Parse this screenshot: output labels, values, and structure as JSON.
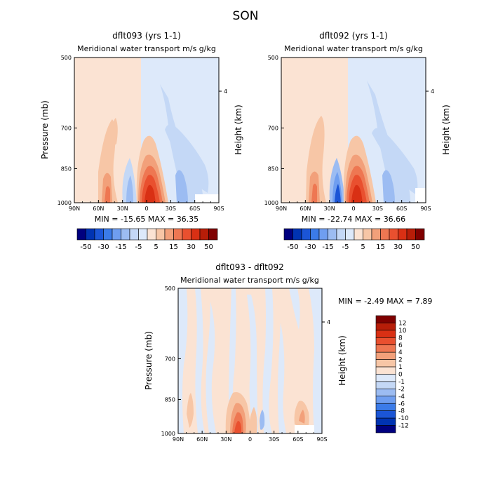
{
  "page": {
    "title": "SON"
  },
  "chart_data": [
    {
      "type": "heatmap",
      "title": "dflt093 (yrs 1-1)",
      "subtitle": "Meridional water transport m/s g/kg",
      "ylabel": "Pressure (mb)",
      "y2label": "Height (km)",
      "x_ticks": [
        "90N",
        "60N",
        "30N",
        "0",
        "30S",
        "60S",
        "90S"
      ],
      "x_values": [
        90,
        60,
        30,
        0,
        -30,
        -60,
        -90
      ],
      "y_ticks": [
        "500",
        "700",
        "850",
        "1000"
      ],
      "y_values": [
        500,
        700,
        850,
        1000
      ],
      "y2_ticks": [
        "4"
      ],
      "minmax": "MIN = -15.65   MAX =  36.35",
      "colorbar_labels": [
        "-50",
        "-30",
        "-15",
        "-5",
        "5",
        "15",
        "30",
        "50"
      ],
      "colors": [
        "#00007f",
        "#0033b2",
        "#1b55d6",
        "#3b7be8",
        "#6f9ef0",
        "#9cbcf2",
        "#c4d8f6",
        "#dde9fa",
        "#fbe3d3",
        "#f7c6a6",
        "#f2a07a",
        "#ee7752",
        "#e9502f",
        "#d93014",
        "#b71d08",
        "#7f0000"
      ]
    },
    {
      "type": "heatmap",
      "title": "dflt092 (yrs 1-1)",
      "subtitle": "Meridional water transport m/s g/kg",
      "ylabel": "",
      "y2label": "Height (km)",
      "x_ticks": [
        "90N",
        "60N",
        "30N",
        "0",
        "30S",
        "60S",
        "90S"
      ],
      "x_values": [
        90,
        60,
        30,
        0,
        -30,
        -60,
        -90
      ],
      "y_ticks": [
        "500",
        "700",
        "850",
        "1000"
      ],
      "y_values": [
        500,
        700,
        850,
        1000
      ],
      "y2_ticks": [
        "4"
      ],
      "minmax": "MIN = -22.74   MAX =  36.66",
      "colorbar_labels": [
        "-50",
        "-30",
        "-15",
        "-5",
        "5",
        "15",
        "30",
        "50"
      ],
      "colors": [
        "#00007f",
        "#0033b2",
        "#1b55d6",
        "#3b7be8",
        "#6f9ef0",
        "#9cbcf2",
        "#c4d8f6",
        "#dde9fa",
        "#fbe3d3",
        "#f7c6a6",
        "#f2a07a",
        "#ee7752",
        "#e9502f",
        "#d93014",
        "#b71d08",
        "#7f0000"
      ]
    },
    {
      "type": "heatmap",
      "title": "dflt093 - dflt092",
      "subtitle": "Meridional water transport m/s g/kg",
      "ylabel": "Pressure (mb)",
      "y2label": "Height (km)",
      "x_ticks": [
        "90N",
        "60N",
        "30N",
        "0",
        "30S",
        "60S",
        "90S"
      ],
      "x_values": [
        90,
        60,
        30,
        0,
        -30,
        -60,
        -90
      ],
      "y_ticks": [
        "500",
        "700",
        "850",
        "1000"
      ],
      "y_values": [
        500,
        700,
        850,
        1000
      ],
      "y2_ticks": [
        "4"
      ],
      "minmax": "MIN =   -2.49   MAX =    7.89",
      "colorbar_labels": [
        "12",
        "10",
        "8",
        "6",
        "4",
        "2",
        "1",
        "0",
        "-1",
        "-2",
        "-4",
        "-6",
        "-8",
        "-10",
        "-12"
      ],
      "colors": [
        "#7f0000",
        "#b71d08",
        "#d93014",
        "#e9502f",
        "#ee7752",
        "#f2a07a",
        "#f7c6a6",
        "#fbe3d3",
        "#dde9fa",
        "#c4d8f6",
        "#9cbcf2",
        "#6f9ef0",
        "#3b7be8",
        "#1b55d6",
        "#0033b2",
        "#00007f"
      ]
    }
  ]
}
